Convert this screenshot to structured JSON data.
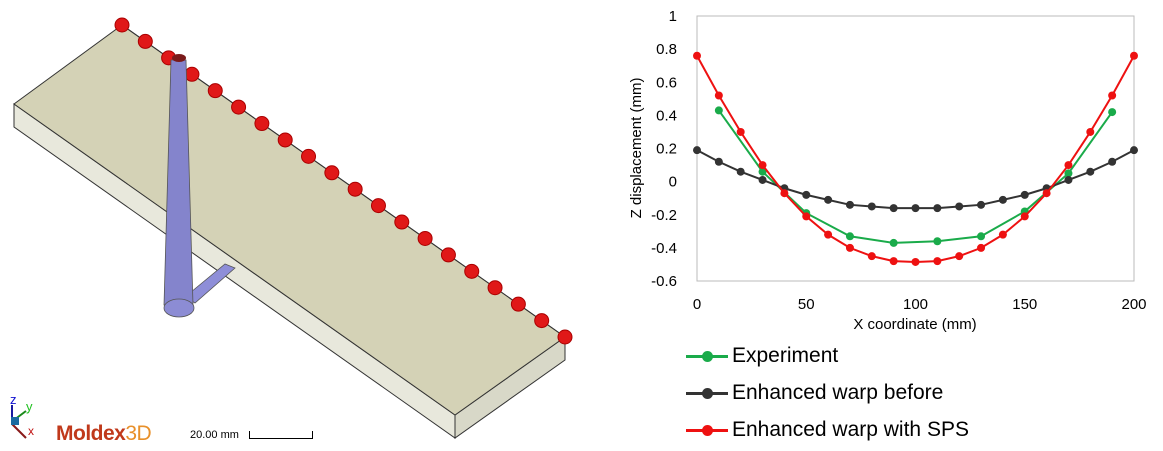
{
  "model_view": {
    "brand_main": "Moldex",
    "brand_suffix": "3D",
    "scale_label": "20.00 mm",
    "axes": {
      "z": "z",
      "y": "y",
      "x": "x"
    }
  },
  "legend": [
    {
      "label": "Experiment",
      "color": "#1aab4a"
    },
    {
      "label": "Enhanced warp before",
      "color": "#333333"
    },
    {
      "label": "Enhanced warp with SPS",
      "color": "#ee1111"
    }
  ],
  "chart_data": {
    "type": "line",
    "xlabel": "X coordinate (mm)",
    "ylabel": "Z displacement (mm)",
    "xlim": [
      0,
      200
    ],
    "ylim": [
      -0.6,
      1
    ],
    "xticks": [
      0,
      50,
      100,
      150,
      200
    ],
    "yticks": [
      1,
      0.8,
      0.6,
      0.4,
      0.2,
      0,
      -0.2,
      -0.4,
      -0.6
    ],
    "grid": false,
    "legend_position": "bottom",
    "series": [
      {
        "name": "Experiment",
        "color": "#1aab4a",
        "x": [
          10,
          30,
          50,
          70,
          90,
          110,
          130,
          150,
          170,
          190
        ],
        "y": [
          0.43,
          0.06,
          -0.19,
          -0.33,
          -0.37,
          -0.36,
          -0.33,
          -0.18,
          0.05,
          0.42
        ]
      },
      {
        "name": "Enhanced warp before",
        "color": "#333333",
        "x": [
          0,
          10,
          20,
          30,
          40,
          50,
          60,
          70,
          80,
          90,
          100,
          110,
          120,
          130,
          140,
          150,
          160,
          170,
          180,
          190,
          200
        ],
        "y": [
          0.19,
          0.12,
          0.06,
          0.01,
          -0.04,
          -0.08,
          -0.11,
          -0.14,
          -0.15,
          -0.16,
          -0.16,
          -0.16,
          -0.15,
          -0.14,
          -0.11,
          -0.08,
          -0.04,
          0.01,
          0.06,
          0.12,
          0.19
        ]
      },
      {
        "name": "Enhanced warp with SPS",
        "color": "#ee1111",
        "x": [
          0,
          10,
          20,
          30,
          40,
          50,
          60,
          70,
          80,
          90,
          100,
          110,
          120,
          130,
          140,
          150,
          160,
          170,
          180,
          190,
          200
        ],
        "y": [
          0.76,
          0.52,
          0.3,
          0.1,
          -0.07,
          -0.21,
          -0.32,
          -0.4,
          -0.45,
          -0.48,
          -0.485,
          -0.48,
          -0.45,
          -0.4,
          -0.32,
          -0.21,
          -0.07,
          0.1,
          0.3,
          0.52,
          0.76
        ]
      }
    ]
  }
}
